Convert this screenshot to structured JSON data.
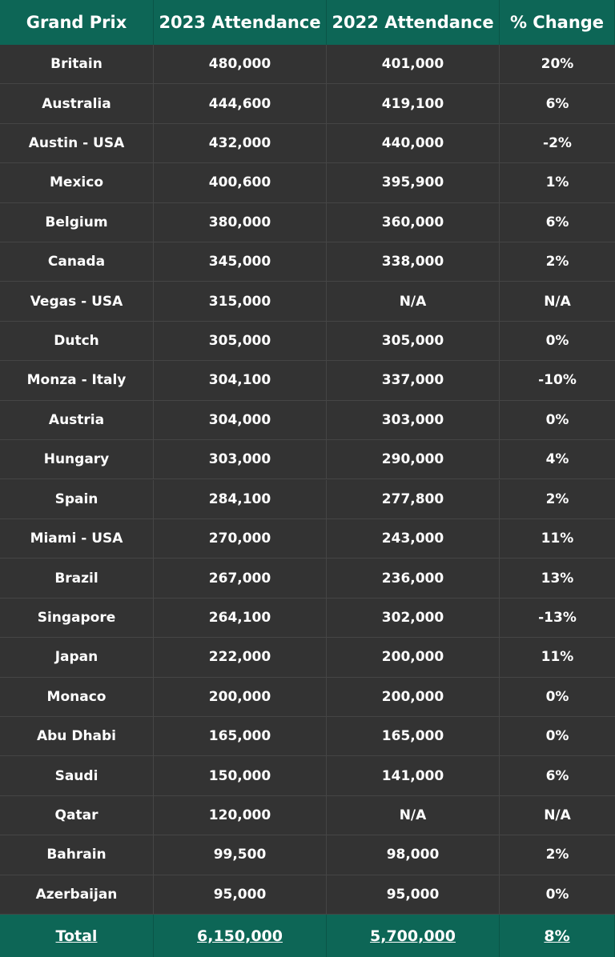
{
  "table": {
    "header": [
      "Grand Prix",
      "2023 Attendance",
      "2022 Attendance",
      "% Change"
    ],
    "rows": [
      [
        "Britain",
        "480,000",
        "401,000",
        "20%"
      ],
      [
        "Australia",
        "444,600",
        "419,100",
        "6%"
      ],
      [
        "Austin - USA",
        "432,000",
        "440,000",
        "-2%"
      ],
      [
        "Mexico",
        "400,600",
        "395,900",
        "1%"
      ],
      [
        "Belgium",
        "380,000",
        "360,000",
        "6%"
      ],
      [
        "Canada",
        "345,000",
        "338,000",
        "2%"
      ],
      [
        "Vegas - USA",
        "315,000",
        "N/A",
        "N/A"
      ],
      [
        "Dutch",
        "305,000",
        "305,000",
        "0%"
      ],
      [
        "Monza - Italy",
        "304,100",
        "337,000",
        "-10%"
      ],
      [
        "Austria",
        "304,000",
        "303,000",
        "0%"
      ],
      [
        "Hungary",
        "303,000",
        "290,000",
        "4%"
      ],
      [
        "Spain",
        "284,100",
        "277,800",
        "2%"
      ],
      [
        "Miami - USA",
        "270,000",
        "243,000",
        "11%"
      ],
      [
        "Brazil",
        "267,000",
        "236,000",
        "13%"
      ],
      [
        "Singapore",
        "264,100",
        "302,000",
        "-13%"
      ],
      [
        "Japan",
        "222,000",
        "200,000",
        "11%"
      ],
      [
        "Monaco",
        "200,000",
        "200,000",
        "0%"
      ],
      [
        "Abu Dhabi",
        "165,000",
        "165,000",
        "0%"
      ],
      [
        "Saudi",
        "150,000",
        "141,000",
        "6%"
      ],
      [
        "Qatar",
        "120,000",
        "N/A",
        "N/A"
      ],
      [
        "Bahrain",
        "99,500",
        "98,000",
        "2%"
      ],
      [
        "Azerbaijan",
        "95,000",
        "95,000",
        "0%"
      ]
    ],
    "total": [
      "Total",
      "6,150,000",
      "5,700,000",
      "8%"
    ]
  }
}
